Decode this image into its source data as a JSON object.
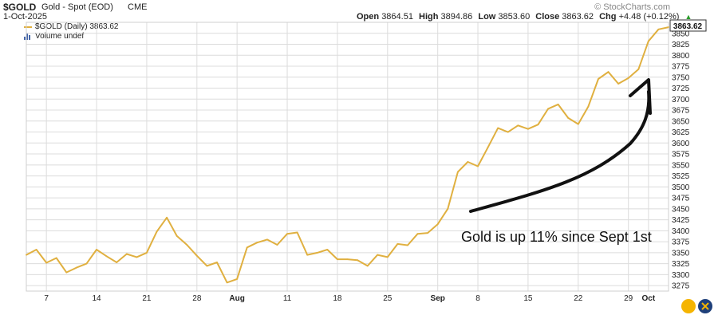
{
  "header": {
    "symbol": "$GOLD",
    "description": "Gold - Spot (EOD)",
    "exchange": "CME",
    "brand": "© StockCharts.com",
    "date": "1-Oct-2025",
    "ohlc": {
      "open_label": "Open",
      "open": "3864.51",
      "high_label": "High",
      "high": "3894.86",
      "low_label": "Low",
      "low": "3853.60",
      "close_label": "Close",
      "close": "3863.62",
      "chg_label": "Chg",
      "chg": "+4.48 (+0.12%)",
      "chg_arrow": "▲"
    }
  },
  "legend": {
    "series_label": "$GOLD (Daily) 3863.62",
    "volume_label": "Volume undef"
  },
  "annotation": "Gold is up 11% since Sept 1st",
  "last_price_label": "3863.62",
  "colors": {
    "line": "#e0b040",
    "grid": "#dcdcdc",
    "arrow": "#111111",
    "price_tag_bg": "#ffffff"
  },
  "chart_data": {
    "type": "line",
    "title": "$GOLD",
    "ylim": [
      3262.5,
      3875
    ],
    "y_ticks": [
      3275,
      3300,
      3325,
      3350,
      3375,
      3400,
      3425,
      3450,
      3475,
      3500,
      3525,
      3550,
      3575,
      3600,
      3625,
      3650,
      3675,
      3700,
      3725,
      3750,
      3775,
      3800,
      3825,
      3850
    ],
    "x_tick_labels": [
      {
        "i": 2,
        "label": "7"
      },
      {
        "i": 7,
        "label": "14"
      },
      {
        "i": 12,
        "label": "21"
      },
      {
        "i": 17,
        "label": "28"
      },
      {
        "i": 21,
        "label": "Aug"
      },
      {
        "i": 26,
        "label": "11"
      },
      {
        "i": 31,
        "label": "18"
      },
      {
        "i": 36,
        "label": "25"
      },
      {
        "i": 41,
        "label": "Sep"
      },
      {
        "i": 45,
        "label": "8"
      },
      {
        "i": 50,
        "label": "15"
      },
      {
        "i": 55,
        "label": "22"
      },
      {
        "i": 60,
        "label": "29"
      },
      {
        "i": 62,
        "label": "Oct"
      }
    ],
    "series": [
      {
        "name": "$GOLD (Daily)",
        "values": [
          3345,
          3357,
          3327,
          3338,
          3305,
          3316,
          3325,
          3357,
          3342,
          3328,
          3347,
          3340,
          3350,
          3398,
          3430,
          3388,
          3368,
          3343,
          3320,
          3328,
          3282,
          3290,
          3362,
          3373,
          3380,
          3368,
          3393,
          3396,
          3345,
          3350,
          3357,
          3335,
          3335,
          3333,
          3320,
          3345,
          3340,
          3370,
          3367,
          3393,
          3395,
          3415,
          3450,
          3534,
          3557,
          3547,
          3590,
          3634,
          3625,
          3640,
          3632,
          3642,
          3678,
          3688,
          3657,
          3643,
          3683,
          3746,
          3762,
          3735,
          3748,
          3768,
          3832,
          3859,
          3864
        ]
      }
    ]
  }
}
